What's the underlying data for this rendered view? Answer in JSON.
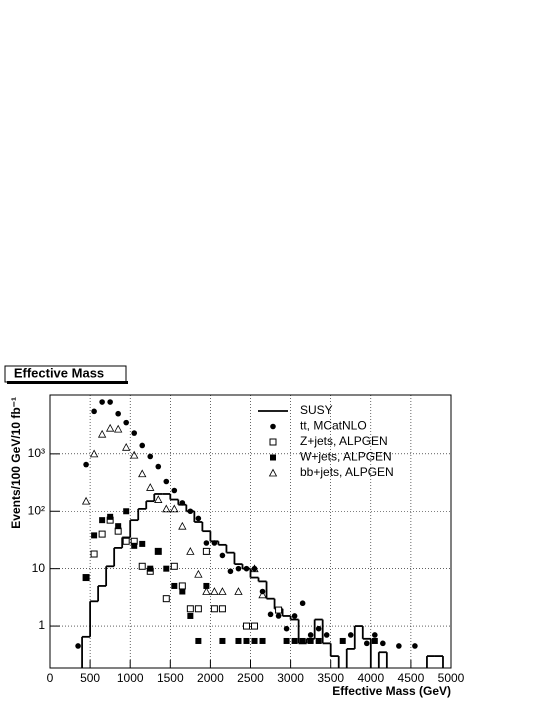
{
  "chart_data": {
    "type": "scatter",
    "title": "Effective Mass",
    "xlabel": "Effective Mass (GeV)",
    "ylabel": "Events/100 GeV/10 fb⁻¹",
    "xlim": [
      0,
      5000
    ],
    "xticks": [
      0,
      500,
      1000,
      1500,
      2000,
      2500,
      3000,
      3500,
      4000,
      4500,
      5000
    ],
    "ylim": [
      0.186,
      10600
    ],
    "log_y": true,
    "yticks": [
      1,
      10,
      {
        "value": 100,
        "label": "10²"
      },
      {
        "value": 1000,
        "label": "10³"
      }
    ],
    "grid": true,
    "legend": "top-right",
    "series": [
      {
        "name": "SUSY",
        "style": "step",
        "color": "#000000",
        "bins": [
          400,
          500,
          600,
          700,
          800,
          900,
          1000,
          1100,
          1200,
          1300,
          1400,
          1500,
          1600,
          1700,
          1800,
          1900,
          2000,
          2100,
          2200,
          2300,
          2400,
          2500,
          2600,
          2700,
          2800,
          2900,
          3000,
          3100,
          3200,
          3300,
          3400,
          3500,
          3600,
          3700,
          3800,
          3900,
          4000,
          4100,
          4200,
          4300,
          4400,
          4500,
          4600,
          4700,
          4800,
          4900
        ],
        "values": [
          0.65,
          2.7,
          5,
          11,
          23,
          35,
          70,
          110,
          150,
          200,
          200,
          160,
          130,
          100,
          65,
          45,
          30,
          26,
          19,
          12,
          10,
          7,
          6,
          3,
          2,
          1.5,
          1.3,
          0.5,
          0.6,
          1.3,
          0.5,
          0.3,
          null,
          0.4,
          1,
          0.6,
          null,
          0.35,
          null,
          null,
          null,
          null,
          null,
          0.3,
          0.3
        ]
      },
      {
        "name": "tt, MCatNLO",
        "style": "circle",
        "color": "#000000",
        "x": [
          350,
          450,
          550,
          650,
          750,
          850,
          950,
          1050,
          1150,
          1250,
          1350,
          1450,
          1550,
          1650,
          1750,
          1850,
          1950,
          2050,
          2150,
          2250,
          2350,
          2450,
          2550,
          2650,
          2750,
          2850,
          2950,
          3050,
          3150,
          3250,
          3350,
          3450,
          3750,
          3950,
          4050,
          4150,
          4350,
          4550
        ],
        "values": [
          0.45,
          650,
          5500,
          8000,
          8000,
          5000,
          3500,
          2300,
          1400,
          900,
          600,
          330,
          230,
          140,
          100,
          75,
          28,
          28,
          17,
          9,
          10,
          10,
          10,
          4,
          1.6,
          1.5,
          0.9,
          1.5,
          2.5,
          0.7,
          0.9,
          0.7,
          0.7,
          0.5,
          0.7,
          0.5,
          0.45,
          0.45
        ]
      },
      {
        "name": "Z+jets, ALPGEN",
        "style": "open-square",
        "color": "#000000",
        "x": [
          450,
          550,
          650,
          750,
          850,
          950,
          1050,
          1150,
          1250,
          1350,
          1450,
          1550,
          1650,
          1750,
          1850,
          1950,
          2050,
          2150,
          2450,
          2550,
          2850
        ],
        "values": [
          7,
          18,
          40,
          70,
          45,
          30,
          30,
          11,
          9,
          20,
          3,
          11,
          5,
          2,
          2,
          20,
          2,
          2,
          1,
          1,
          1.9
        ]
      },
      {
        "name": "W+jets, ALPGEN",
        "style": "square",
        "color": "#000000",
        "x": [
          450,
          550,
          650,
          750,
          850,
          950,
          1050,
          1150,
          1250,
          1350,
          1450,
          1550,
          1650,
          1750,
          1850,
          1950,
          2150,
          2350,
          2450,
          2550,
          2650,
          2950,
          3050,
          3150,
          3250,
          3350,
          3650,
          4050
        ],
        "values": [
          7,
          38,
          70,
          80,
          55,
          100,
          25,
          27,
          10,
          20,
          10,
          5,
          4,
          1.5,
          0.55,
          5,
          0.55,
          0.55,
          0.55,
          0.55,
          0.55,
          0.55,
          0.55,
          0.55,
          0.55,
          0.55,
          0.55,
          0.55
        ]
      },
      {
        "name": "bb+jets, ALPGEN",
        "style": "open-triangle",
        "color": "#000000",
        "x": [
          450,
          550,
          650,
          750,
          850,
          950,
          1050,
          1150,
          1250,
          1350,
          1450,
          1550,
          1650,
          1750,
          1850,
          1950,
          2050,
          2150,
          2350,
          2550,
          2650
        ],
        "values": [
          150,
          1000,
          2200,
          2800,
          2700,
          1300,
          950,
          450,
          260,
          160,
          110,
          110,
          55,
          20,
          8,
          4,
          4,
          4,
          4,
          10,
          3.5
        ]
      }
    ]
  }
}
